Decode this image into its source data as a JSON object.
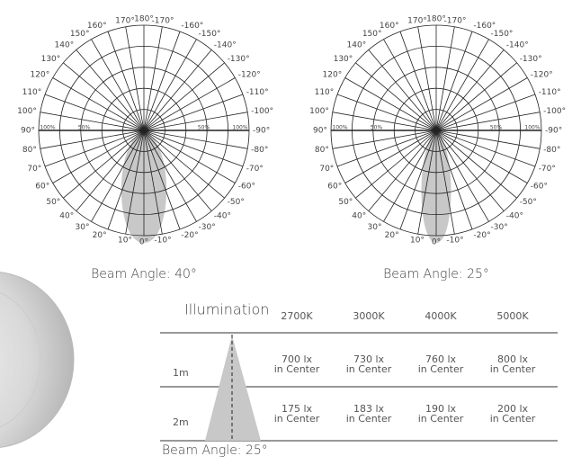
{
  "polar_diagrams": [
    {
      "angle_labels": [
        "180°",
        "170°",
        "160°",
        "150°",
        "140°",
        "130°",
        "120°",
        "110°",
        "100°",
        "90°",
        "80°",
        "70°",
        "60°",
        "50°",
        "40°",
        "30°",
        "20°",
        "10°",
        "0°",
        "-10°",
        "-20°",
        "-30°",
        "-40°",
        "-50°",
        "-60°",
        "-70°",
        "-80°",
        "-90°",
        "-100°",
        "-110°",
        "-120°",
        "-130°",
        "-140°",
        "-150°",
        "-160°",
        "-170°"
      ],
      "ring_labels": [
        "100%",
        "50%",
        "50%",
        "100%"
      ],
      "caption": "Beam Angle: 40°"
    },
    {
      "angle_labels": [
        "180°",
        "170°",
        "160°",
        "150°",
        "140°",
        "130°",
        "120°",
        "110°",
        "100°",
        "90°",
        "80°",
        "70°",
        "60°",
        "50°",
        "40°",
        "30°",
        "20°",
        "10°",
        "0°",
        "-10°",
        "-20°",
        "-30°",
        "-40°",
        "-50°",
        "-60°",
        "-70°",
        "-80°",
        "-90°",
        "-100°",
        "-110°",
        "-120°",
        "-130°",
        "-140°",
        "-150°",
        "-160°",
        "-170°"
      ],
      "ring_labels": [
        "100%",
        "50%",
        "50%",
        "100%"
      ],
      "caption": "Beam Angle: 25°"
    }
  ],
  "table": {
    "title": "Illumination",
    "columns": [
      "2700K",
      "3000K",
      "4000K",
      "5000K"
    ],
    "rows": [
      {
        "distance": "1m",
        "cells": [
          [
            "700 lx",
            "in Center"
          ],
          [
            "730 lx",
            "in Center"
          ],
          [
            "760 lx",
            "in Center"
          ],
          [
            "800 lx",
            "in Center"
          ]
        ]
      },
      {
        "distance": "2m",
        "cells": [
          [
            "175 lx",
            "in Center"
          ],
          [
            "183 lx",
            "in Center"
          ],
          [
            "190 lx",
            "in Center"
          ],
          [
            "200 lx",
            "in Center"
          ]
        ]
      }
    ],
    "caption": "Beam Angle: 25°"
  }
}
